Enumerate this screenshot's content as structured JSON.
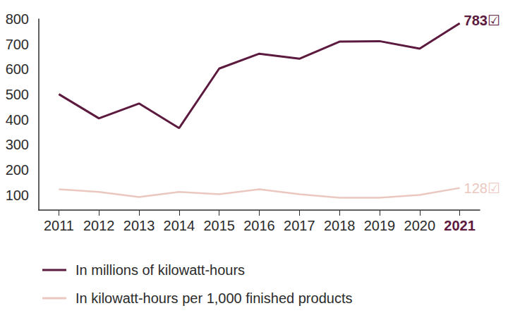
{
  "chart_data": {
    "type": "line",
    "categories": [
      "2011",
      "2012",
      "2013",
      "2014",
      "2015",
      "2016",
      "2017",
      "2018",
      "2019",
      "2020",
      "2021"
    ],
    "series": [
      {
        "name": "In millions of kilowatt-hours",
        "color": "#5c1a3e",
        "values": [
          501,
          405,
          464,
          366,
          603,
          662,
          642,
          710,
          712,
          682,
          783
        ],
        "value_labels": [
          null,
          null,
          null,
          null,
          null,
          null,
          null,
          null,
          null,
          null,
          "783☑"
        ]
      },
      {
        "name": "In kilowatt-hours per 1,000 finished products",
        "color": "#ebc8bf",
        "values": [
          123,
          112,
          92,
          112,
          103,
          123,
          103,
          89,
          89,
          100,
          128
        ],
        "value_labels": [
          null,
          null,
          null,
          null,
          null,
          null,
          null,
          null,
          null,
          null,
          "128☑"
        ]
      }
    ],
    "ylim": [
      40,
      800
    ],
    "yticks": [
      100,
      200,
      300,
      400,
      500,
      600,
      700,
      800
    ],
    "grid": false,
    "legend": "bottom-left",
    "data_labels": true
  }
}
